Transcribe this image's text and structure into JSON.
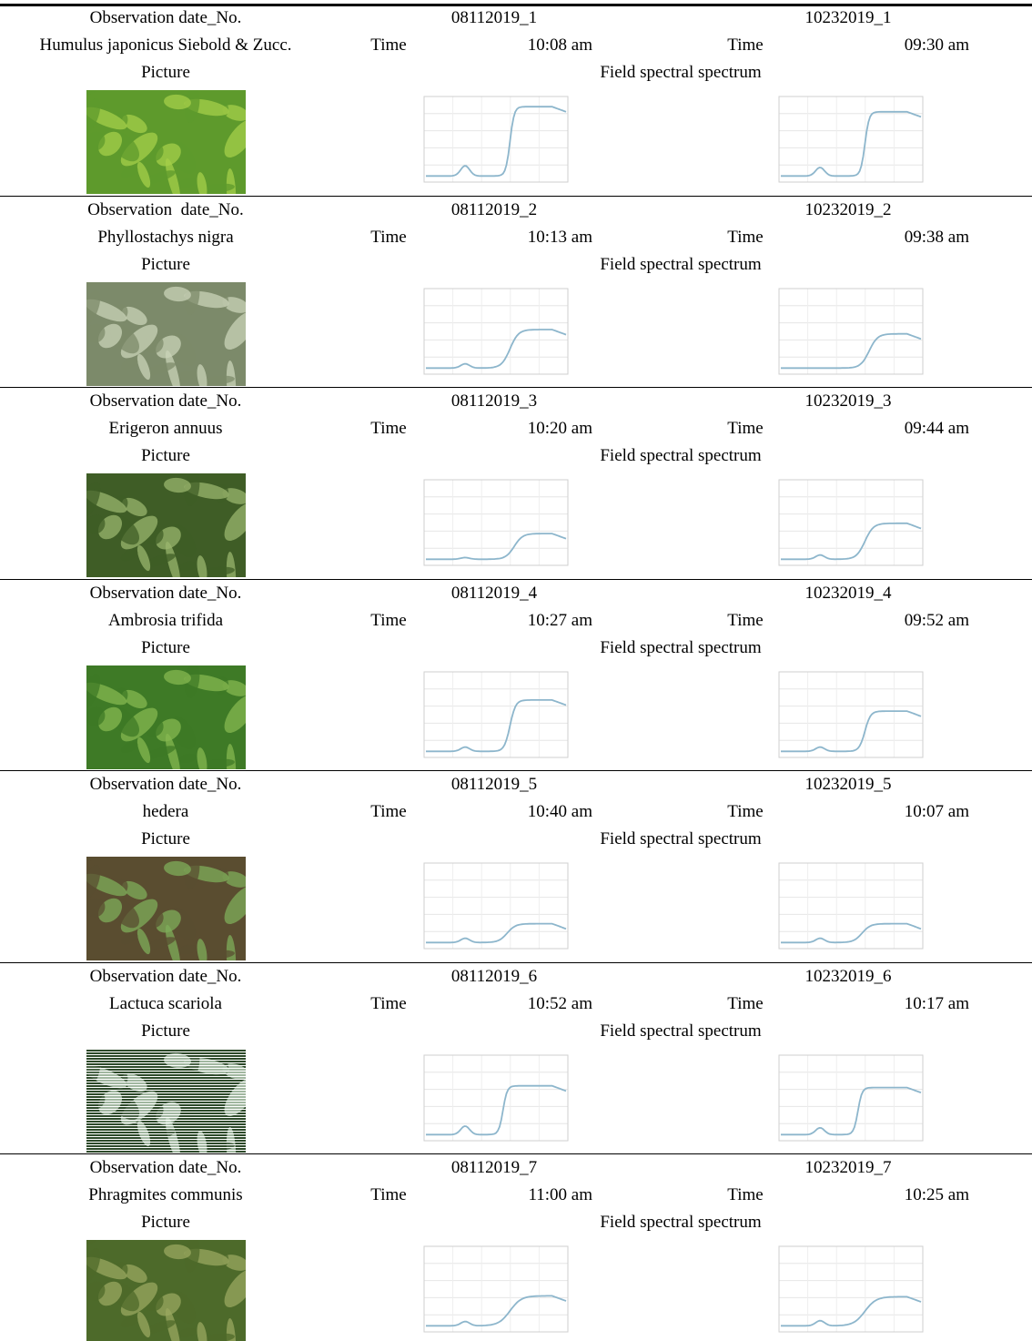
{
  "rows": [
    {
      "label": "Observation date_No.",
      "species": "Humulus japonicus Siebold & Zucc.",
      "picture": "Picture",
      "spectrum": "Field spectral spectrum",
      "obs": [
        {
          "id": "08112019_1",
          "time_label": "Time",
          "time": "10:08 am"
        },
        {
          "id": "10232019_1",
          "time_label": "Time",
          "time": "09:30 am"
        }
      ]
    },
    {
      "label": "Observation  date_No.",
      "species": "Phyllostachys nigra",
      "picture": "Picture",
      "spectrum": "Field spectral spectrum",
      "obs": [
        {
          "id": "08112019_2",
          "time_label": "Time",
          "time": "10:13 am"
        },
        {
          "id": "10232019_2",
          "time_label": "Time",
          "time": "09:38 am"
        }
      ]
    },
    {
      "label": "Observation date_No.",
      "species": "Erigeron annuus",
      "picture": "Picture",
      "spectrum": "Field spectral spectrum",
      "obs": [
        {
          "id": "08112019_3",
          "time_label": "Time",
          "time": "10:20 am"
        },
        {
          "id": "10232019_3",
          "time_label": "Time",
          "time": "09:44 am"
        }
      ]
    },
    {
      "label": "Observation date_No.",
      "species": "Ambrosia trifida",
      "picture": "Picture",
      "spectrum": "Field spectral spectrum",
      "obs": [
        {
          "id": "08112019_4",
          "time_label": "Time",
          "time": "10:27 am"
        },
        {
          "id": "10232019_4",
          "time_label": "Time",
          "time": "09:52 am"
        }
      ]
    },
    {
      "label": "Observation date_No.",
      "species": "hedera",
      "picture": "Picture",
      "spectrum": "Field spectral spectrum",
      "obs": [
        {
          "id": "08112019_5",
          "time_label": "Time",
          "time": "10:40 am"
        },
        {
          "id": "10232019_5",
          "time_label": "Time",
          "time": "10:07 am"
        }
      ]
    },
    {
      "label": "Observation date_No.",
      "species": "Lactuca scariola",
      "picture": "Picture",
      "spectrum": "Field spectral spectrum",
      "obs": [
        {
          "id": "08112019_6",
          "time_label": "Time",
          "time": "10:52 am"
        },
        {
          "id": "10232019_6",
          "time_label": "Time",
          "time": "10:17 am"
        }
      ]
    },
    {
      "label": "Observation date_No.",
      "species": "Phragmites communis",
      "picture": "Picture",
      "spectrum": "Field spectral spectrum",
      "obs": [
        {
          "id": "08112019_7",
          "time_label": "Time",
          "time": "11:00 am"
        },
        {
          "id": "10232019_7",
          "time_label": "Time",
          "time": "10:25 am"
        }
      ]
    }
  ]
}
